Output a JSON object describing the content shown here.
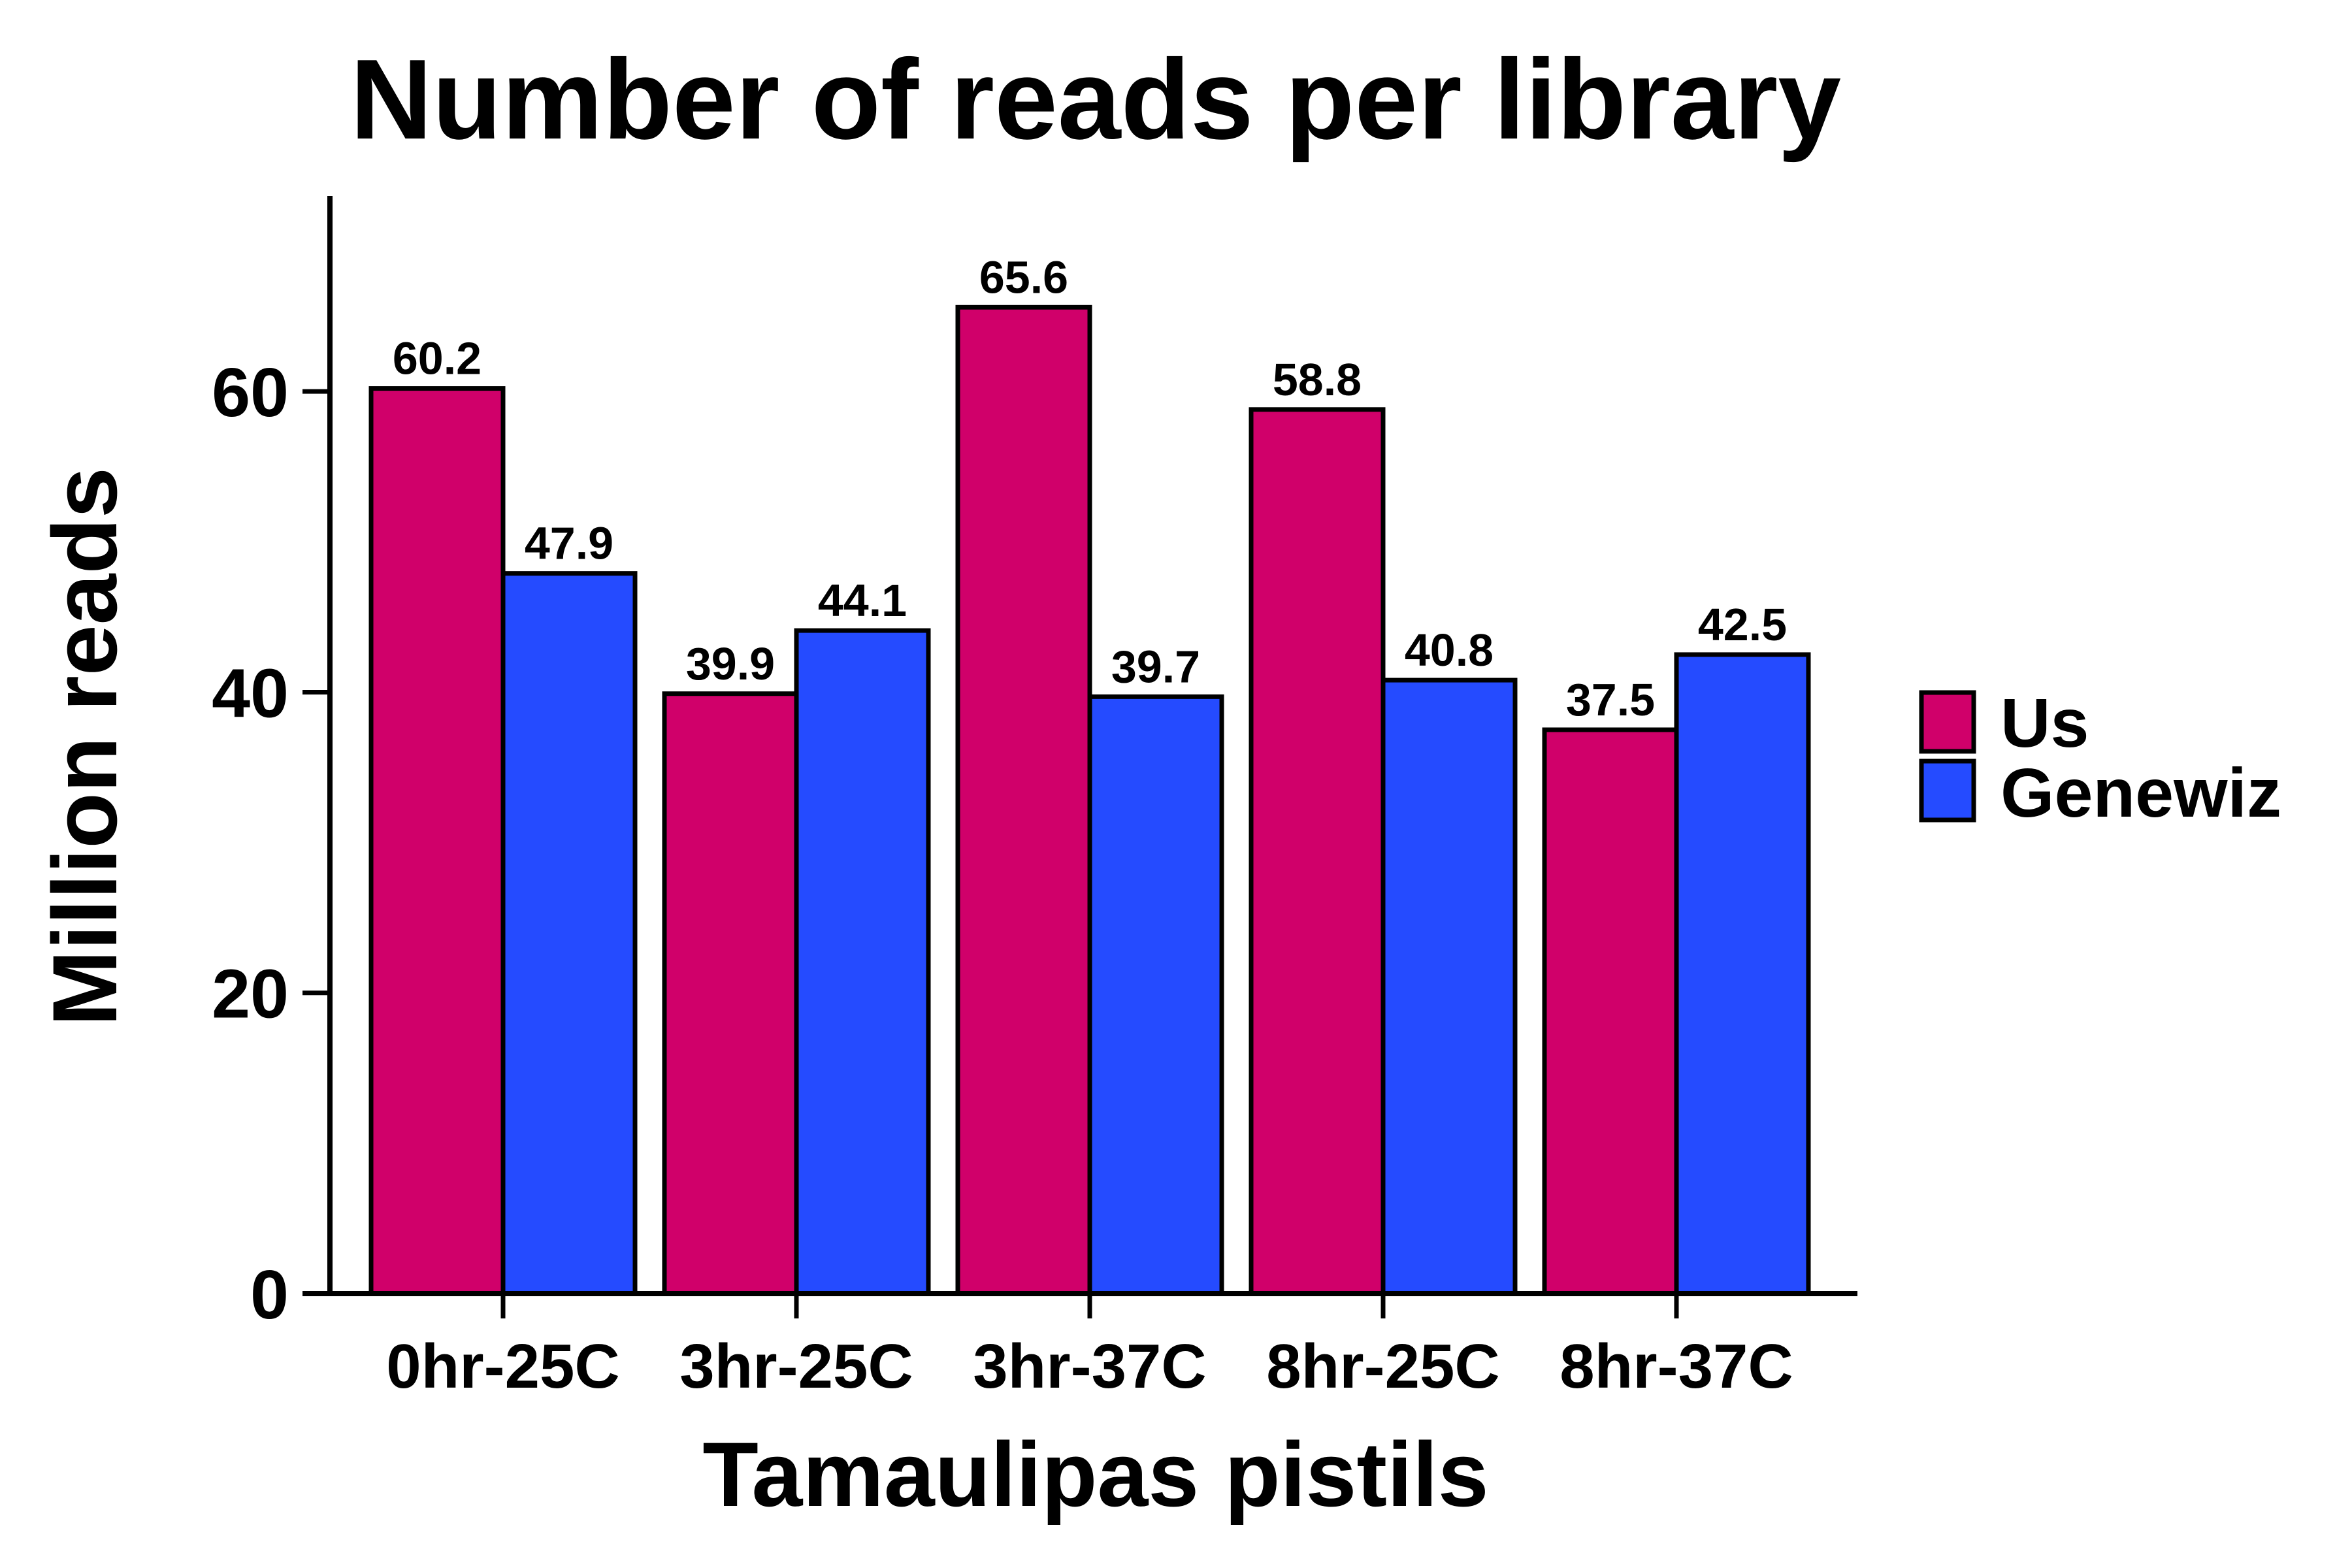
{
  "chart_data": {
    "type": "bar",
    "title": "Number of reads per library",
    "xlabel": "Tamaulipas pistils",
    "ylabel": "Million reads",
    "categories": [
      "0hr-25C",
      "3hr-25C",
      "3hr-37C",
      "8hr-25C",
      "8hr-37C"
    ],
    "series": [
      {
        "name": "Us",
        "color": "#D0006A",
        "values": [
          60.2,
          39.9,
          65.6,
          58.8,
          37.5
        ]
      },
      {
        "name": "Genewiz",
        "color": "#254BFF",
        "values": [
          47.9,
          44.1,
          39.7,
          40.8,
          42.5
        ]
      }
    ],
    "ylim": [
      0,
      73
    ],
    "yticks": [
      0,
      20,
      40,
      60
    ],
    "grid": false,
    "legend_position": "right"
  }
}
